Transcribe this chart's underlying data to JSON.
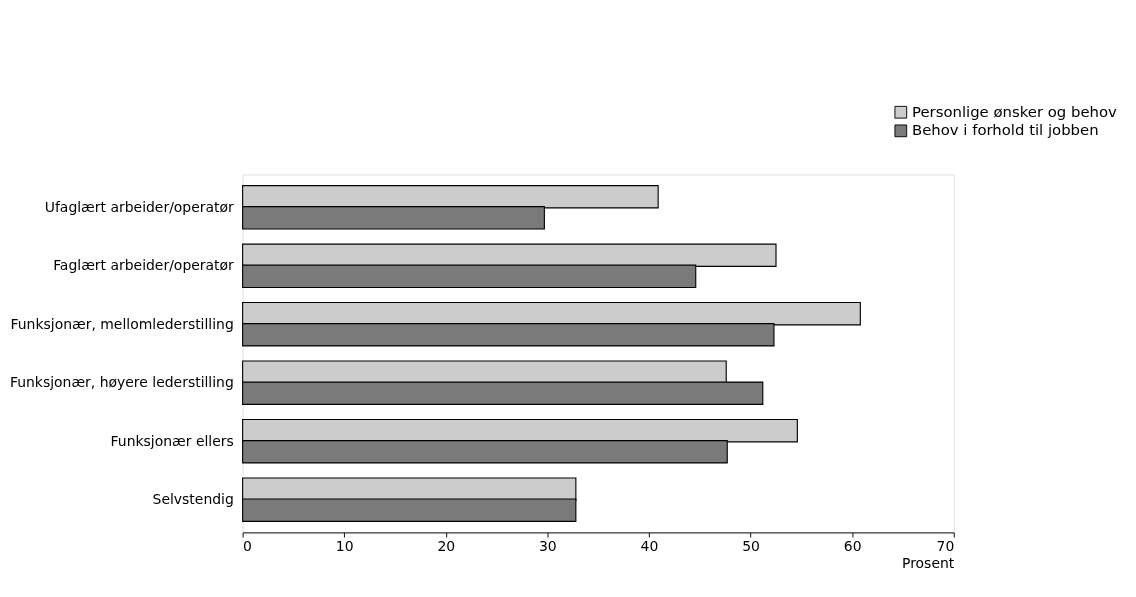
{
  "chart_data": {
    "type": "bar",
    "orientation": "horizontal",
    "xlabel": "Prosent",
    "categories": [
      "Ufaglært arbeider/operatør",
      "Faglært arbeider/operatør",
      "Funksjonær, mellomlederstilling",
      "Funksjonær, høyere lederstilling",
      "Funksjonær ellers",
      "Selvstendig"
    ],
    "series": [
      {
        "name": "Personlige ønsker og behov",
        "color": "#cccccc",
        "values": [
          40.9,
          52.5,
          60.8,
          47.6,
          54.6,
          32.8
        ]
      },
      {
        "name": "Behov i forhold til jobben",
        "color": "#7a7a7a",
        "values": [
          29.7,
          44.6,
          52.3,
          51.2,
          47.7,
          32.8
        ]
      }
    ],
    "xlim": [
      0,
      70
    ],
    "xticks": [
      0,
      10,
      20,
      30,
      40,
      50,
      60,
      70
    ],
    "grid": false,
    "legend": "top right"
  }
}
